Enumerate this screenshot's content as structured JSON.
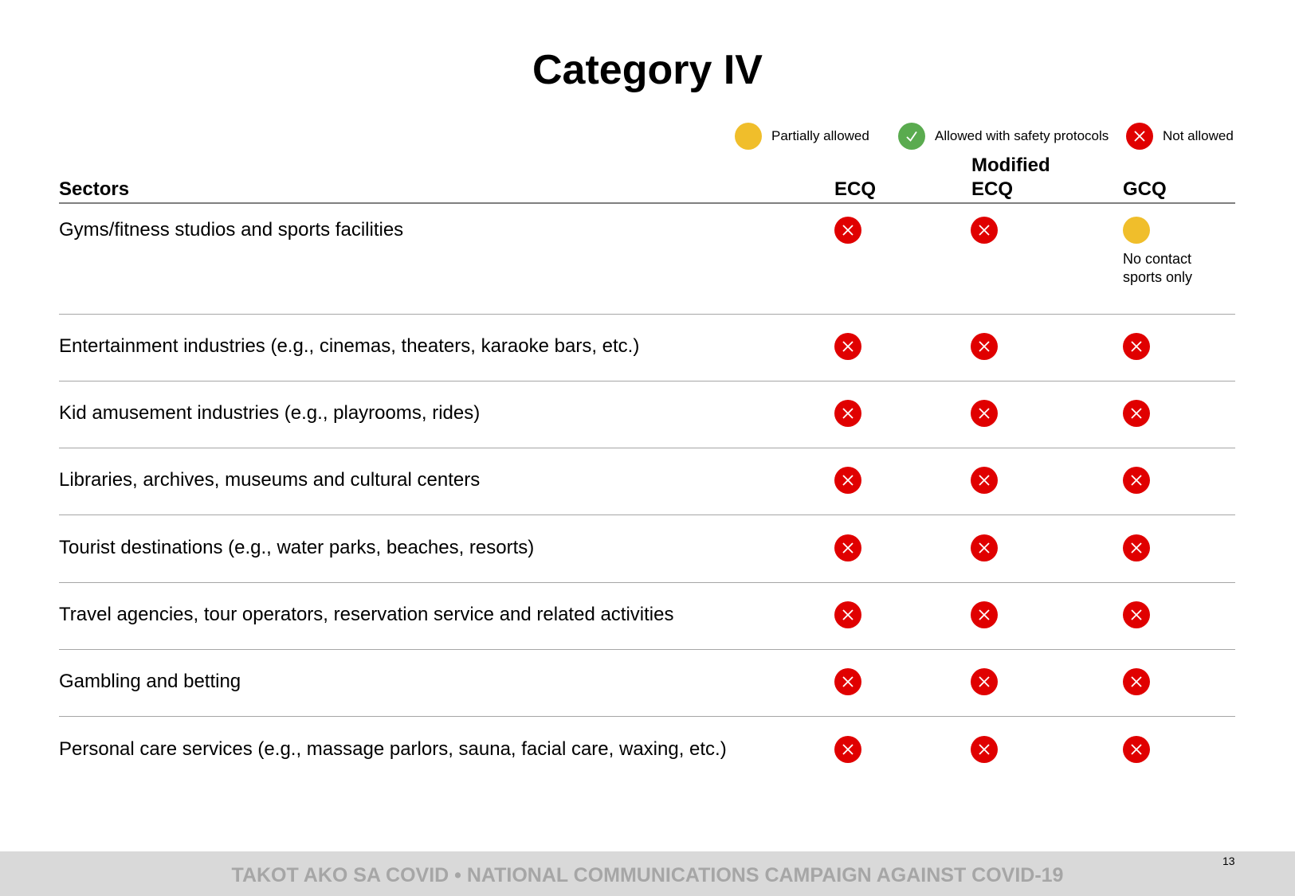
{
  "title": "Category IV",
  "colors": {
    "partial": "#f0be2b",
    "allowed": "#5aab4f",
    "not_allowed": "#e00000"
  },
  "legend": [
    {
      "label": "Partially allowed",
      "status": "partial",
      "icon": "yellow-circle"
    },
    {
      "label": "Allowed with safety protocols",
      "status": "allowed",
      "icon": "green-check-circle"
    },
    {
      "label": "Not allowed",
      "status": "not_allowed",
      "icon": "red-x-circle"
    }
  ],
  "table": {
    "headers": {
      "sectors": "Sectors",
      "ecq": "ECQ",
      "mecq_line1": "Modified",
      "mecq_line2": "ECQ",
      "gcq": "GCQ"
    },
    "rows": [
      {
        "sector": "Gyms/fitness studios and sports facilities",
        "ecq": "not_allowed",
        "mecq": "not_allowed",
        "gcq": "partial",
        "gcq_note_line1": "No contact",
        "gcq_note_line2": "sports only"
      },
      {
        "sector": "Entertainment industries (e.g., cinemas, theaters, karaoke bars, etc.)",
        "ecq": "not_allowed",
        "mecq": "not_allowed",
        "gcq": "not_allowed"
      },
      {
        "sector": "Kid amusement industries (e.g., playrooms, rides)",
        "ecq": "not_allowed",
        "mecq": "not_allowed",
        "gcq": "not_allowed"
      },
      {
        "sector": "Libraries, archives, museums and cultural centers",
        "ecq": "not_allowed",
        "mecq": "not_allowed",
        "gcq": "not_allowed"
      },
      {
        "sector": "Tourist destinations (e.g., water parks, beaches, resorts)",
        "ecq": "not_allowed",
        "mecq": "not_allowed",
        "gcq": "not_allowed"
      },
      {
        "sector": "Travel agencies, tour operators, reservation service and related activities",
        "ecq": "not_allowed",
        "mecq": "not_allowed",
        "gcq": "not_allowed"
      },
      {
        "sector": "Gambling and betting",
        "ecq": "not_allowed",
        "mecq": "not_allowed",
        "gcq": "not_allowed"
      },
      {
        "sector": "Personal care services (e.g., massage parlors, sauna, facial care, waxing, etc.)",
        "ecq": "not_allowed",
        "mecq": "not_allowed",
        "gcq": "not_allowed"
      }
    ]
  },
  "footer": {
    "text": "TAKOT AKO SA COVID • NATIONAL COMMUNICATIONS CAMPAIGN AGAINST COVID-19",
    "page_number": "13"
  }
}
